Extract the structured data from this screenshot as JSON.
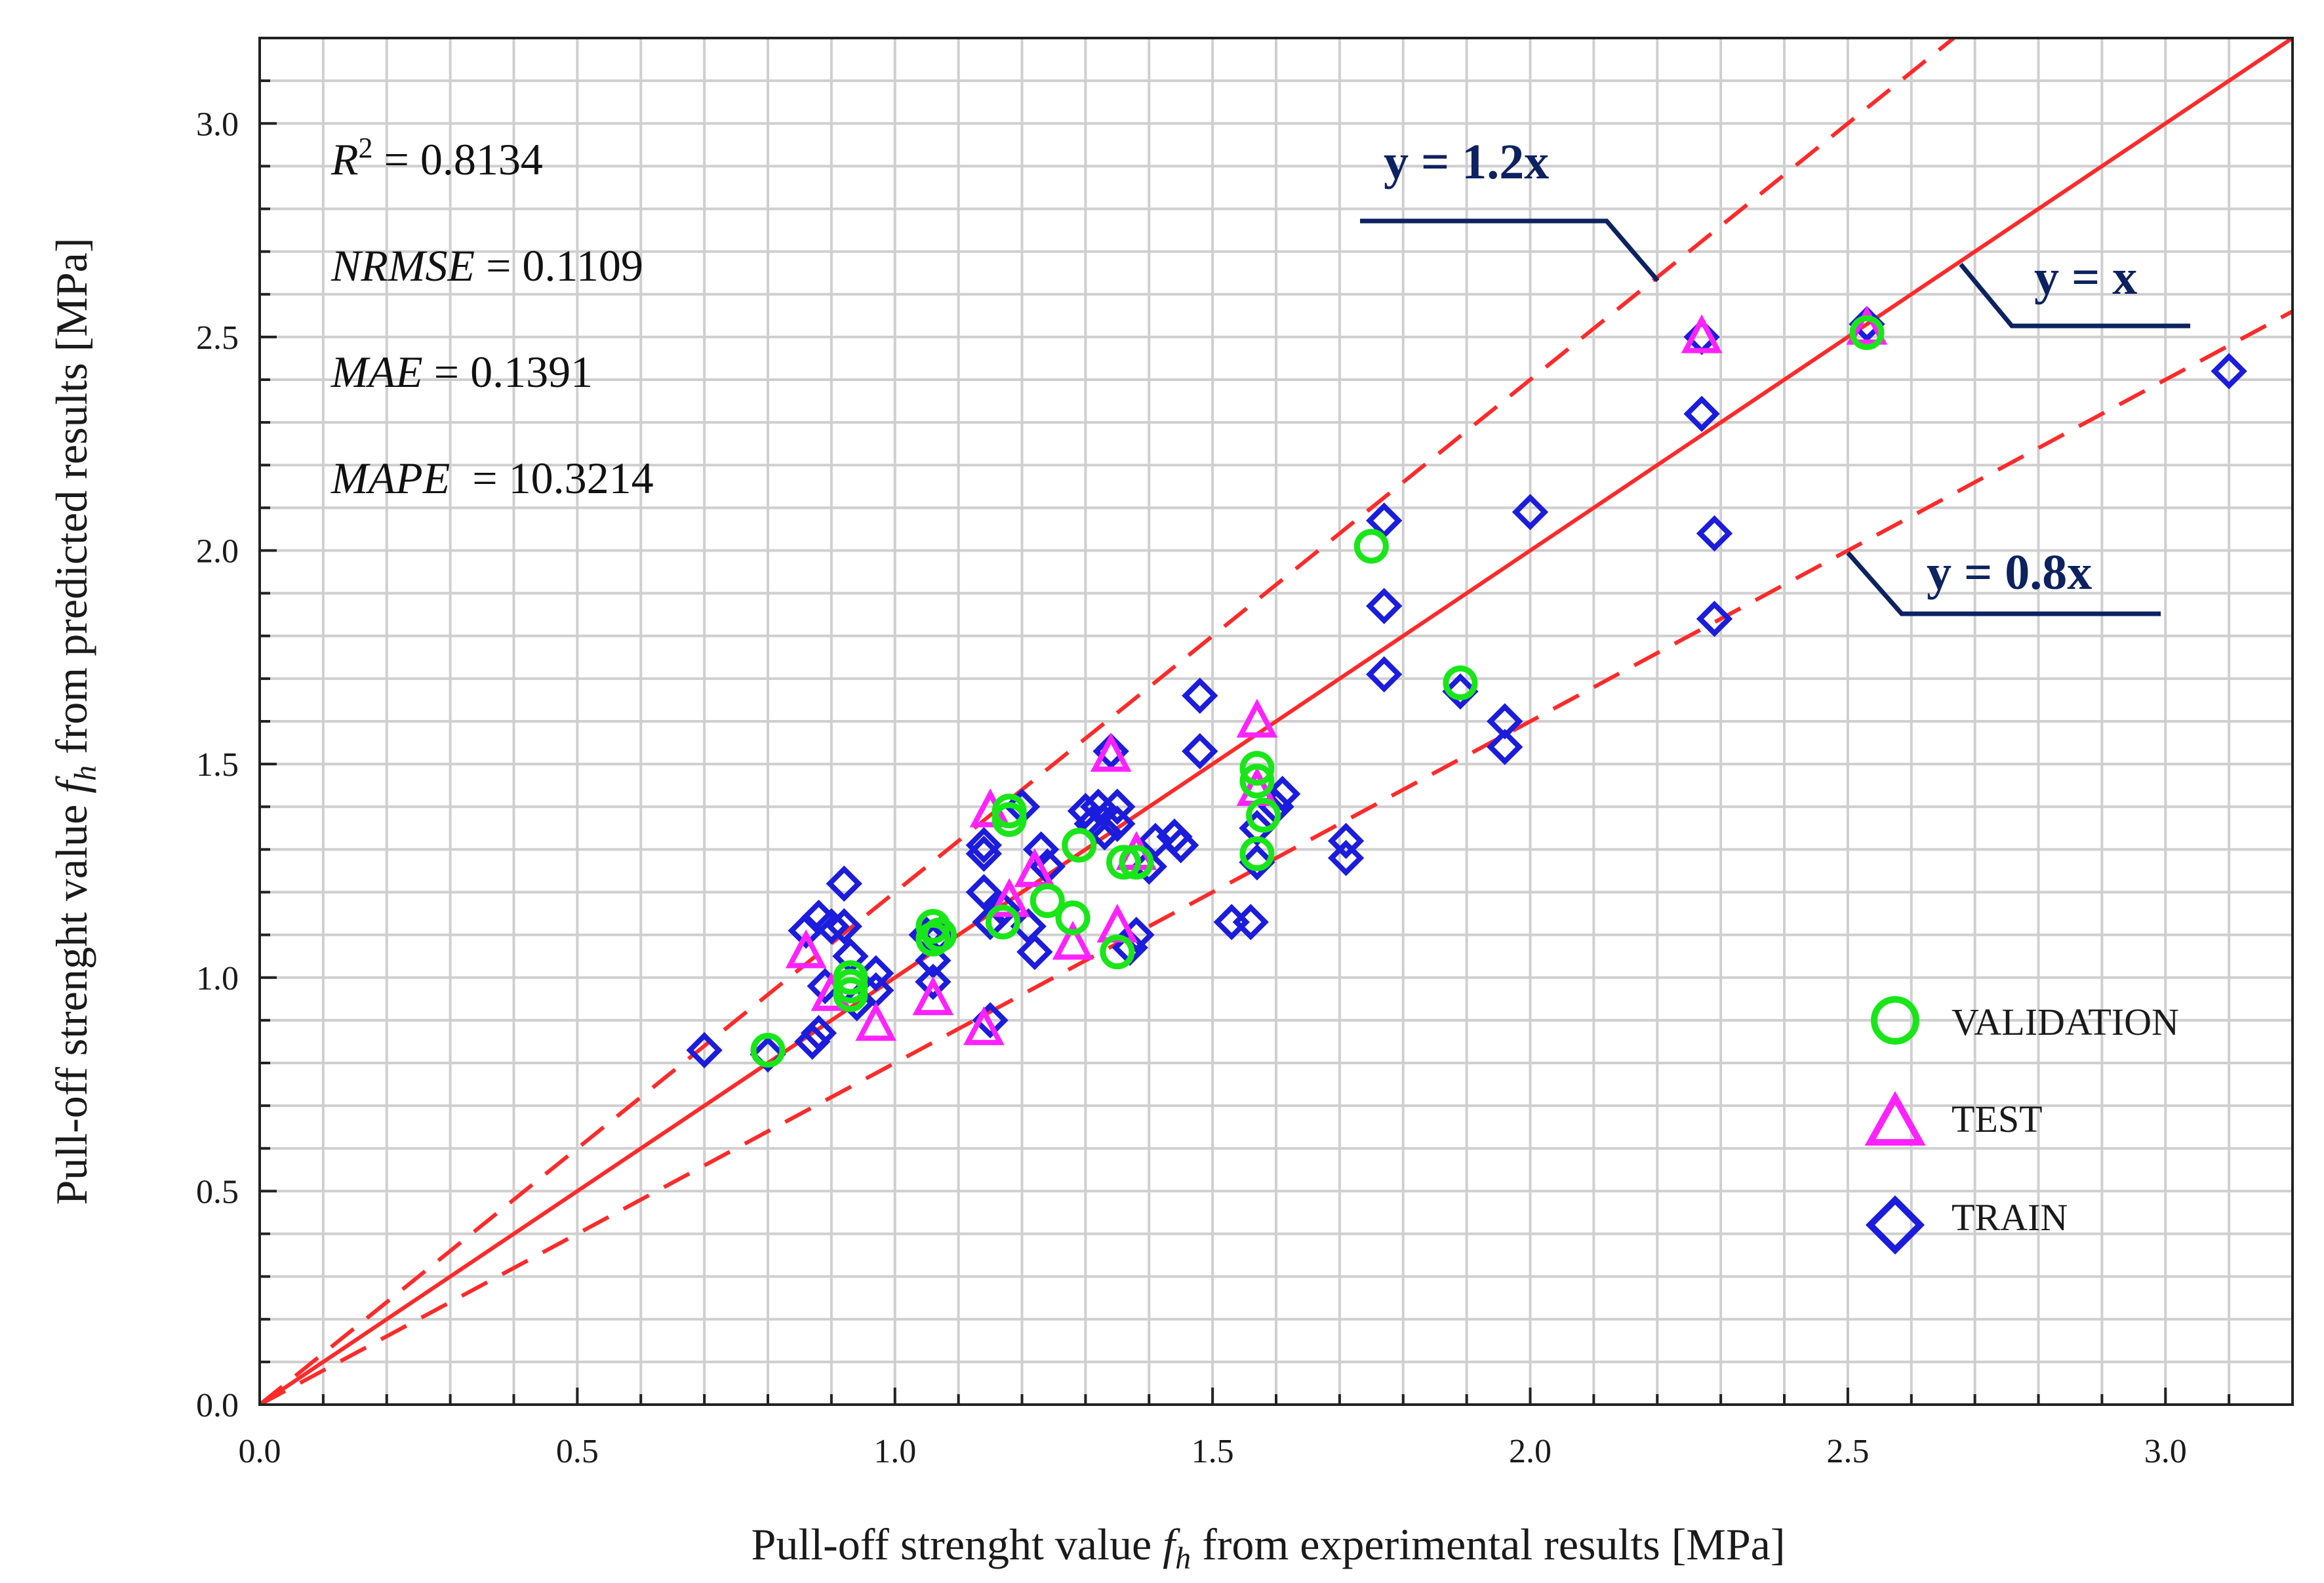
{
  "chart_data": {
    "type": "scatter",
    "xlabel_pre": "Pull-off strenght value ",
    "xlabel_sym": "f",
    "xlabel_sub": "h",
    "xlabel_post": " from experimental results [MPa]",
    "ylabel_pre": "Pull-off strenght value ",
    "ylabel_sym": "f",
    "ylabel_sub": "h",
    "ylabel_post": " from predicted results [MPa]",
    "xlim": [
      0,
      3.2
    ],
    "ylim": [
      0,
      3.2
    ],
    "x_ticks": [
      "0.0",
      "0.5",
      "1.0",
      "1.5",
      "2.0",
      "2.5",
      "3.0"
    ],
    "y_ticks": [
      "0.0",
      "0.5",
      "1.0",
      "1.5",
      "2.0",
      "2.5",
      "3.0"
    ],
    "grid": true,
    "stats": {
      "r2_label": "R",
      "r2_sup": "2",
      "r2_value": " = 0.8134",
      "nrmse_label": "NRMSE",
      "nrmse_value": " = 0.1109",
      "mae_label": "MAE",
      "mae_value": " = 0.1391",
      "mape_label": "MAPE",
      "mape_value": "  = 10.3214"
    },
    "reference_lines": [
      {
        "slope": 1.2,
        "label": "y = 1.2x",
        "style": "dashed",
        "color": "#ff2a2a"
      },
      {
        "slope": 1.0,
        "label": "y = x",
        "style": "solid",
        "color": "#ff2a2a"
      },
      {
        "slope": 0.8,
        "label": "y = 0.8x",
        "style": "dashed",
        "color": "#ff2a2a"
      }
    ],
    "legend_position": "bottom-right",
    "series": [
      {
        "name": "VALIDATION",
        "marker": "circle",
        "color": "#19e619",
        "points": [
          [
            0.8,
            0.83
          ],
          [
            0.93,
            0.98
          ],
          [
            0.93,
            1.0
          ],
          [
            0.93,
            0.96
          ],
          [
            1.06,
            1.12
          ],
          [
            1.06,
            1.09
          ],
          [
            1.07,
            1.1
          ],
          [
            1.17,
            1.13
          ],
          [
            1.18,
            1.39
          ],
          [
            1.18,
            1.37
          ],
          [
            1.24,
            1.18
          ],
          [
            1.28,
            1.14
          ],
          [
            1.29,
            1.31
          ],
          [
            1.35,
            1.06
          ],
          [
            1.36,
            1.27
          ],
          [
            1.38,
            1.27
          ],
          [
            1.57,
            1.49
          ],
          [
            1.57,
            1.46
          ],
          [
            1.57,
            1.29
          ],
          [
            1.58,
            1.38
          ],
          [
            1.75,
            2.01
          ],
          [
            1.89,
            1.69
          ],
          [
            2.53,
            2.51
          ]
        ]
      },
      {
        "name": "TEST",
        "marker": "triangle",
        "color": "#ff22ff",
        "points": [
          [
            0.86,
            1.06
          ],
          [
            0.9,
            0.96
          ],
          [
            0.97,
            0.89
          ],
          [
            1.06,
            0.95
          ],
          [
            1.14,
            0.88
          ],
          [
            1.15,
            1.39
          ],
          [
            1.18,
            1.18
          ],
          [
            1.22,
            1.25
          ],
          [
            1.28,
            1.08
          ],
          [
            1.34,
            1.52
          ],
          [
            1.35,
            1.12
          ],
          [
            1.38,
            1.29
          ],
          [
            1.57,
            1.6
          ],
          [
            1.57,
            1.44
          ],
          [
            2.27,
            2.5
          ],
          [
            2.53,
            2.52
          ]
        ]
      },
      {
        "name": "TRAIN",
        "marker": "diamond",
        "color": "#1c1cdc",
        "points": [
          [
            0.7,
            0.83
          ],
          [
            0.8,
            0.82
          ],
          [
            0.86,
            1.11
          ],
          [
            0.87,
            0.85
          ],
          [
            0.88,
            0.87
          ],
          [
            0.88,
            1.14
          ],
          [
            0.89,
            0.98
          ],
          [
            0.9,
            1.12
          ],
          [
            0.92,
            1.22
          ],
          [
            0.92,
            1.12
          ],
          [
            0.93,
            1.05
          ],
          [
            0.94,
            0.94
          ],
          [
            0.97,
            0.97
          ],
          [
            0.97,
            1.01
          ],
          [
            1.05,
            1.1
          ],
          [
            1.06,
            0.99
          ],
          [
            1.06,
            1.04
          ],
          [
            1.07,
            1.1
          ],
          [
            1.14,
            1.29
          ],
          [
            1.14,
            1.31
          ],
          [
            1.14,
            1.2
          ],
          [
            1.15,
            1.13
          ],
          [
            1.15,
            0.9
          ],
          [
            1.17,
            1.16
          ],
          [
            1.2,
            1.4
          ],
          [
            1.21,
            1.12
          ],
          [
            1.22,
            1.06
          ],
          [
            1.23,
            1.3
          ],
          [
            1.24,
            1.26
          ],
          [
            1.3,
            1.39
          ],
          [
            1.31,
            1.36
          ],
          [
            1.32,
            1.4
          ],
          [
            1.33,
            1.34
          ],
          [
            1.34,
            1.53
          ],
          [
            1.35,
            1.4
          ],
          [
            1.35,
            1.36
          ],
          [
            1.37,
            1.07
          ],
          [
            1.38,
            1.1
          ],
          [
            1.4,
            1.26
          ],
          [
            1.41,
            1.32
          ],
          [
            1.44,
            1.33
          ],
          [
            1.45,
            1.31
          ],
          [
            1.48,
            1.66
          ],
          [
            1.48,
            1.53
          ],
          [
            1.53,
            1.13
          ],
          [
            1.56,
            1.13
          ],
          [
            1.57,
            1.27
          ],
          [
            1.57,
            1.35
          ],
          [
            1.6,
            1.4
          ],
          [
            1.61,
            1.43
          ],
          [
            1.71,
            1.28
          ],
          [
            1.71,
            1.32
          ],
          [
            1.77,
            2.07
          ],
          [
            1.77,
            1.87
          ],
          [
            1.77,
            1.71
          ],
          [
            1.89,
            1.67
          ],
          [
            1.96,
            1.6
          ],
          [
            1.96,
            1.54
          ],
          [
            2.0,
            2.09
          ],
          [
            2.27,
            2.5
          ],
          [
            2.27,
            2.32
          ],
          [
            2.29,
            2.04
          ],
          [
            2.29,
            1.84
          ],
          [
            2.53,
            2.53
          ],
          [
            3.1,
            2.42
          ]
        ]
      }
    ]
  }
}
